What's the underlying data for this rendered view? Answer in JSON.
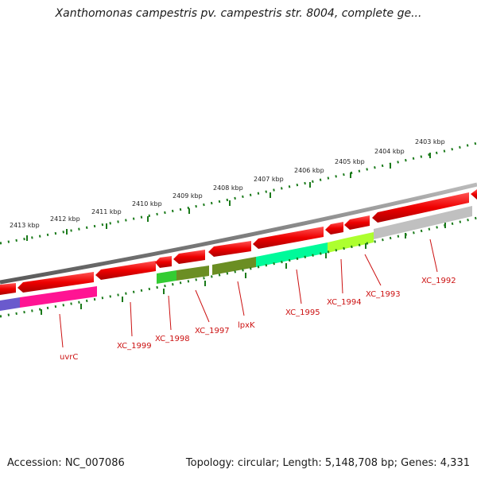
{
  "title": "Xanthomonas campestris pv. campestris str. 8004, complete ge...",
  "accession": "Accession: NC_007086",
  "topology": "Topology: circular; Length: 5,148,708 bp; Genes: 4,331",
  "colors": {
    "backbone": "#808080",
    "forward_strand_gene": "#ee0000",
    "scale_ticks": "#1a7a1a",
    "gene_label": "#cc1111"
  },
  "scale_labels": [
    "2413 kbp",
    "2412 kbp",
    "2411 kbp",
    "2410 kbp",
    "2409 kbp",
    "2408 kbp",
    "2407 kbp",
    "2406 kbp",
    "2405 kbp",
    "2404 kbp",
    "2403 kbp"
  ],
  "reverse_strand_genes": [
    {
      "label": "uvrC",
      "color": "#ff1493"
    },
    {
      "label": "XC_1998",
      "color": "#33cc33"
    },
    {
      "label": "XC_1997",
      "color": "#6b8e23"
    },
    {
      "label": "lpxK",
      "color": "#6b8e23"
    },
    {
      "label": "XC_1995",
      "color": "#00fa9a"
    },
    {
      "label": "XC_1994",
      "color": "#adff2f"
    },
    {
      "label": "XC_1993",
      "color": "#adff2f"
    },
    {
      "label": "XC_1992",
      "color": "#c0c0c0"
    }
  ],
  "unlabeled_genes": [
    {
      "label": "XC_1999",
      "color": "#ee0000"
    }
  ]
}
